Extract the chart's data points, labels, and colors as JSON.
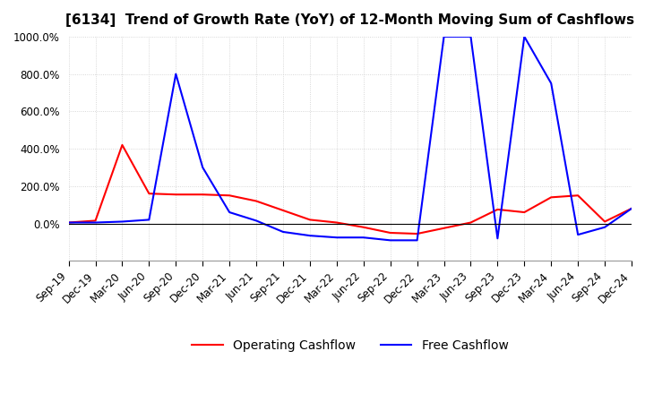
{
  "title": "[6134]  Trend of Growth Rate (YoY) of 12-Month Moving Sum of Cashflows",
  "ylim": [
    -200,
    1000
  ],
  "yticks": [
    0,
    200,
    400,
    600,
    800,
    1000
  ],
  "background_color": "#ffffff",
  "grid_color": "#cccccc",
  "legend": [
    "Operating Cashflow",
    "Free Cashflow"
  ],
  "line_colors": [
    "#ff0000",
    "#0000ff"
  ],
  "x_labels": [
    "Sep-19",
    "Dec-19",
    "Mar-20",
    "Jun-20",
    "Sep-20",
    "Dec-20",
    "Mar-21",
    "Jun-21",
    "Sep-21",
    "Dec-21",
    "Mar-22",
    "Jun-22",
    "Sep-22",
    "Dec-22",
    "Mar-23",
    "Jun-23",
    "Sep-23",
    "Dec-23",
    "Mar-24",
    "Jun-24",
    "Sep-24",
    "Dec-24"
  ],
  "operating_cashflow": [
    5,
    15,
    420,
    160,
    155,
    155,
    150,
    120,
    70,
    20,
    5,
    -20,
    -50,
    -55,
    -25,
    5,
    75,
    60,
    140,
    150,
    10,
    80
  ],
  "free_cashflow": [
    5,
    5,
    10,
    20,
    800,
    300,
    60,
    15,
    -45,
    -65,
    -75,
    -75,
    -90,
    -90,
    1000,
    1000,
    -80,
    1000,
    750,
    -60,
    -20,
    80
  ]
}
